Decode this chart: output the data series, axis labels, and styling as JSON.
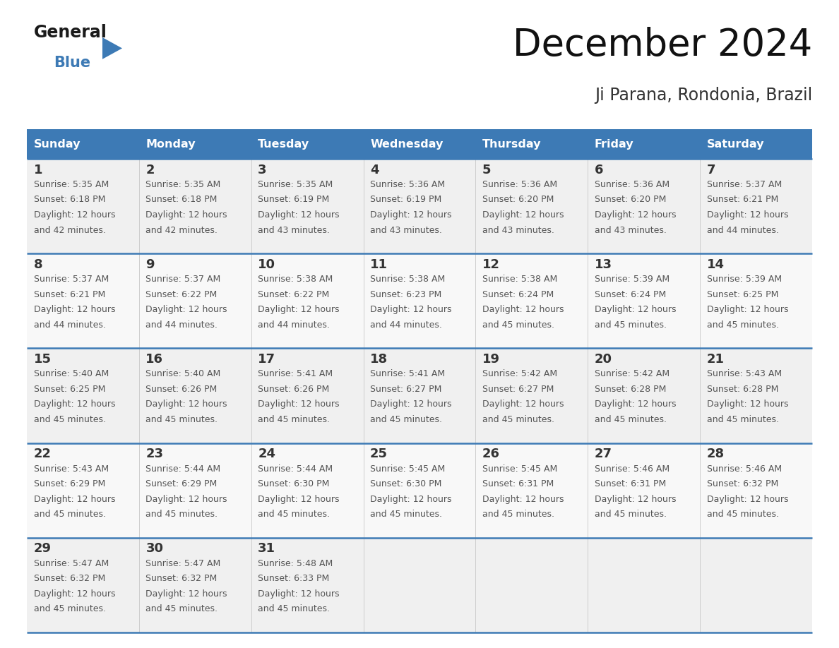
{
  "title": "December 2024",
  "subtitle": "Ji Parana, Rondonia, Brazil",
  "header_color": "#3d7ab5",
  "header_text_color": "#ffffff",
  "bg_color_odd": "#f0f0f0",
  "bg_color_even": "#f8f8f8",
  "day_number_color": "#333333",
  "cell_text_color": "#555555",
  "divider_color": "#3d7ab5",
  "logo_general_color": "#1a1a1a",
  "logo_blue_color": "#3d7ab5",
  "logo_triangle_color": "#3d7ab5",
  "days_of_week": [
    "Sunday",
    "Monday",
    "Tuesday",
    "Wednesday",
    "Thursday",
    "Friday",
    "Saturday"
  ],
  "calendar_data": [
    [
      {
        "day": 1,
        "sunrise": "5:35 AM",
        "sunset": "6:18 PM",
        "daylight_hours": 12,
        "daylight_minutes": 42
      },
      {
        "day": 2,
        "sunrise": "5:35 AM",
        "sunset": "6:18 PM",
        "daylight_hours": 12,
        "daylight_minutes": 42
      },
      {
        "day": 3,
        "sunrise": "5:35 AM",
        "sunset": "6:19 PM",
        "daylight_hours": 12,
        "daylight_minutes": 43
      },
      {
        "day": 4,
        "sunrise": "5:36 AM",
        "sunset": "6:19 PM",
        "daylight_hours": 12,
        "daylight_minutes": 43
      },
      {
        "day": 5,
        "sunrise": "5:36 AM",
        "sunset": "6:20 PM",
        "daylight_hours": 12,
        "daylight_minutes": 43
      },
      {
        "day": 6,
        "sunrise": "5:36 AM",
        "sunset": "6:20 PM",
        "daylight_hours": 12,
        "daylight_minutes": 43
      },
      {
        "day": 7,
        "sunrise": "5:37 AM",
        "sunset": "6:21 PM",
        "daylight_hours": 12,
        "daylight_minutes": 44
      }
    ],
    [
      {
        "day": 8,
        "sunrise": "5:37 AM",
        "sunset": "6:21 PM",
        "daylight_hours": 12,
        "daylight_minutes": 44
      },
      {
        "day": 9,
        "sunrise": "5:37 AM",
        "sunset": "6:22 PM",
        "daylight_hours": 12,
        "daylight_minutes": 44
      },
      {
        "day": 10,
        "sunrise": "5:38 AM",
        "sunset": "6:22 PM",
        "daylight_hours": 12,
        "daylight_minutes": 44
      },
      {
        "day": 11,
        "sunrise": "5:38 AM",
        "sunset": "6:23 PM",
        "daylight_hours": 12,
        "daylight_minutes": 44
      },
      {
        "day": 12,
        "sunrise": "5:38 AM",
        "sunset": "6:24 PM",
        "daylight_hours": 12,
        "daylight_minutes": 45
      },
      {
        "day": 13,
        "sunrise": "5:39 AM",
        "sunset": "6:24 PM",
        "daylight_hours": 12,
        "daylight_minutes": 45
      },
      {
        "day": 14,
        "sunrise": "5:39 AM",
        "sunset": "6:25 PM",
        "daylight_hours": 12,
        "daylight_minutes": 45
      }
    ],
    [
      {
        "day": 15,
        "sunrise": "5:40 AM",
        "sunset": "6:25 PM",
        "daylight_hours": 12,
        "daylight_minutes": 45
      },
      {
        "day": 16,
        "sunrise": "5:40 AM",
        "sunset": "6:26 PM",
        "daylight_hours": 12,
        "daylight_minutes": 45
      },
      {
        "day": 17,
        "sunrise": "5:41 AM",
        "sunset": "6:26 PM",
        "daylight_hours": 12,
        "daylight_minutes": 45
      },
      {
        "day": 18,
        "sunrise": "5:41 AM",
        "sunset": "6:27 PM",
        "daylight_hours": 12,
        "daylight_minutes": 45
      },
      {
        "day": 19,
        "sunrise": "5:42 AM",
        "sunset": "6:27 PM",
        "daylight_hours": 12,
        "daylight_minutes": 45
      },
      {
        "day": 20,
        "sunrise": "5:42 AM",
        "sunset": "6:28 PM",
        "daylight_hours": 12,
        "daylight_minutes": 45
      },
      {
        "day": 21,
        "sunrise": "5:43 AM",
        "sunset": "6:28 PM",
        "daylight_hours": 12,
        "daylight_minutes": 45
      }
    ],
    [
      {
        "day": 22,
        "sunrise": "5:43 AM",
        "sunset": "6:29 PM",
        "daylight_hours": 12,
        "daylight_minutes": 45
      },
      {
        "day": 23,
        "sunrise": "5:44 AM",
        "sunset": "6:29 PM",
        "daylight_hours": 12,
        "daylight_minutes": 45
      },
      {
        "day": 24,
        "sunrise": "5:44 AM",
        "sunset": "6:30 PM",
        "daylight_hours": 12,
        "daylight_minutes": 45
      },
      {
        "day": 25,
        "sunrise": "5:45 AM",
        "sunset": "6:30 PM",
        "daylight_hours": 12,
        "daylight_minutes": 45
      },
      {
        "day": 26,
        "sunrise": "5:45 AM",
        "sunset": "6:31 PM",
        "daylight_hours": 12,
        "daylight_minutes": 45
      },
      {
        "day": 27,
        "sunrise": "5:46 AM",
        "sunset": "6:31 PM",
        "daylight_hours": 12,
        "daylight_minutes": 45
      },
      {
        "day": 28,
        "sunrise": "5:46 AM",
        "sunset": "6:32 PM",
        "daylight_hours": 12,
        "daylight_minutes": 45
      }
    ],
    [
      {
        "day": 29,
        "sunrise": "5:47 AM",
        "sunset": "6:32 PM",
        "daylight_hours": 12,
        "daylight_minutes": 45
      },
      {
        "day": 30,
        "sunrise": "5:47 AM",
        "sunset": "6:32 PM",
        "daylight_hours": 12,
        "daylight_minutes": 45
      },
      {
        "day": 31,
        "sunrise": "5:48 AM",
        "sunset": "6:33 PM",
        "daylight_hours": 12,
        "daylight_minutes": 45
      },
      null,
      null,
      null,
      null
    ]
  ]
}
